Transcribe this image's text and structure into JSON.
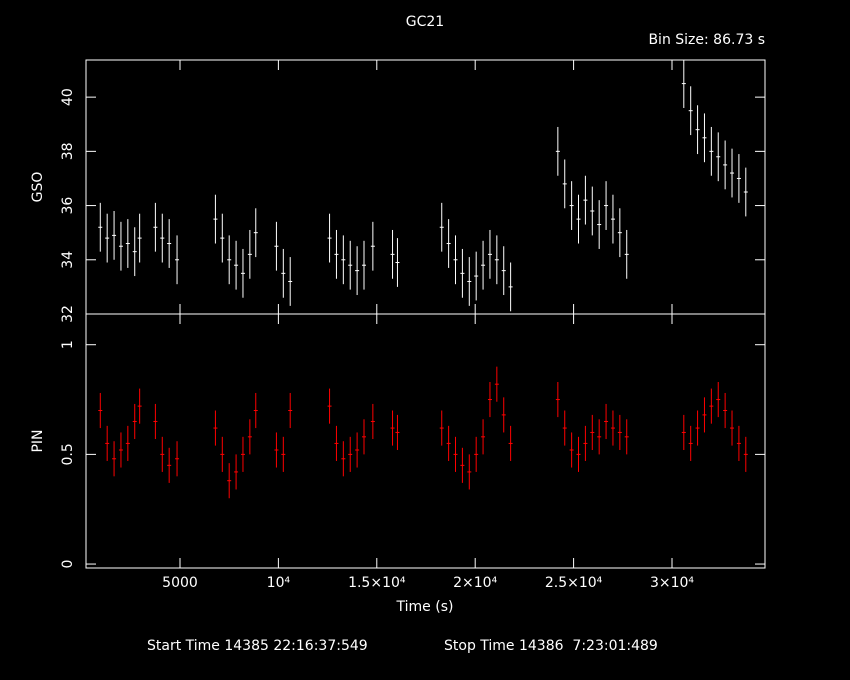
{
  "chart_data": {
    "type": "scatter",
    "title": "GC21",
    "subtitle": "Bin Size: 86.73 s",
    "x_label": "Time (s)",
    "x": [
      950,
      1300,
      1650,
      2000,
      2350,
      2700,
      2950,
      3750,
      4100,
      4450,
      4850,
      6800,
      7150,
      7500,
      7850,
      8200,
      8550,
      8850,
      9900,
      10250,
      10600,
      12600,
      12950,
      13300,
      13650,
      14000,
      14350,
      14800,
      15800,
      16050,
      18300,
      18650,
      19000,
      19350,
      19700,
      20050,
      20400,
      20750,
      21100,
      21450,
      21800,
      24200,
      24550,
      24900,
      25250,
      25600,
      25950,
      26300,
      26650,
      27000,
      27350,
      27700,
      30600,
      30950,
      31300,
      31650,
      32000,
      32350,
      32700,
      33050,
      33400,
      33750
    ],
    "xlim": [
      224,
      34726
    ],
    "xticks": [
      5000,
      {
        "value": 10000,
        "label": "10⁴"
      },
      {
        "value": 15000,
        "label": "1.5×10⁴"
      },
      {
        "value": 20000,
        "label": "2×10⁴"
      },
      {
        "value": 25000,
        "label": "2.5×10⁴"
      },
      {
        "value": 30000,
        "label": "3×10⁴"
      }
    ],
    "panels": [
      {
        "y_label": "GSO",
        "ylim": [
          32,
          41.37
        ],
        "yticks": [
          32,
          34,
          36,
          38,
          40
        ],
        "series": [
          {
            "color": "#ffffff",
            "error": 0.9,
            "values": [
              35.2,
              34.8,
              34.9,
              34.5,
              34.6,
              34.3,
              34.8,
              35.2,
              34.8,
              34.6,
              34.0,
              35.5,
              34.8,
              34.0,
              33.8,
              33.5,
              34.2,
              35.0,
              34.5,
              33.5,
              33.2,
              34.8,
              34.2,
              34.0,
              33.8,
              33.6,
              33.8,
              34.5,
              34.2,
              33.9,
              35.2,
              34.6,
              34.0,
              33.5,
              33.2,
              33.4,
              33.8,
              34.2,
              34.0,
              33.6,
              33.0,
              38.0,
              36.8,
              36.0,
              35.5,
              36.2,
              35.8,
              35.3,
              36.0,
              35.5,
              35.0,
              34.2,
              40.5,
              39.5,
              38.8,
              38.5,
              38.0,
              37.8,
              37.5,
              37.2,
              37.0,
              36.5
            ]
          }
        ]
      },
      {
        "y_label": "PIN",
        "ylim": [
          -0.018,
          1.14
        ],
        "yticks": [
          0,
          0.5,
          1
        ],
        "series": [
          {
            "color": "#ff0000",
            "error": 0.08,
            "values": [
              0.7,
              0.55,
              0.48,
              0.52,
              0.55,
              0.65,
              0.72,
              0.65,
              0.5,
              0.45,
              0.48,
              0.62,
              0.5,
              0.38,
              0.42,
              0.5,
              0.58,
              0.7,
              0.52,
              0.5,
              0.7,
              0.72,
              0.55,
              0.48,
              0.5,
              0.52,
              0.58,
              0.65,
              0.62,
              0.6,
              0.62,
              0.55,
              0.5,
              0.45,
              0.42,
              0.5,
              0.58,
              0.75,
              0.82,
              0.68,
              0.55,
              0.75,
              0.62,
              0.52,
              0.5,
              0.55,
              0.6,
              0.58,
              0.65,
              0.62,
              0.6,
              0.58,
              0.6,
              0.55,
              0.62,
              0.68,
              0.72,
              0.75,
              0.7,
              0.62,
              0.55,
              0.5
            ]
          }
        ]
      }
    ],
    "footer": [
      "Start Time 14385 22:16:37:549",
      "Stop Time 14386  7:23:01:489"
    ]
  }
}
